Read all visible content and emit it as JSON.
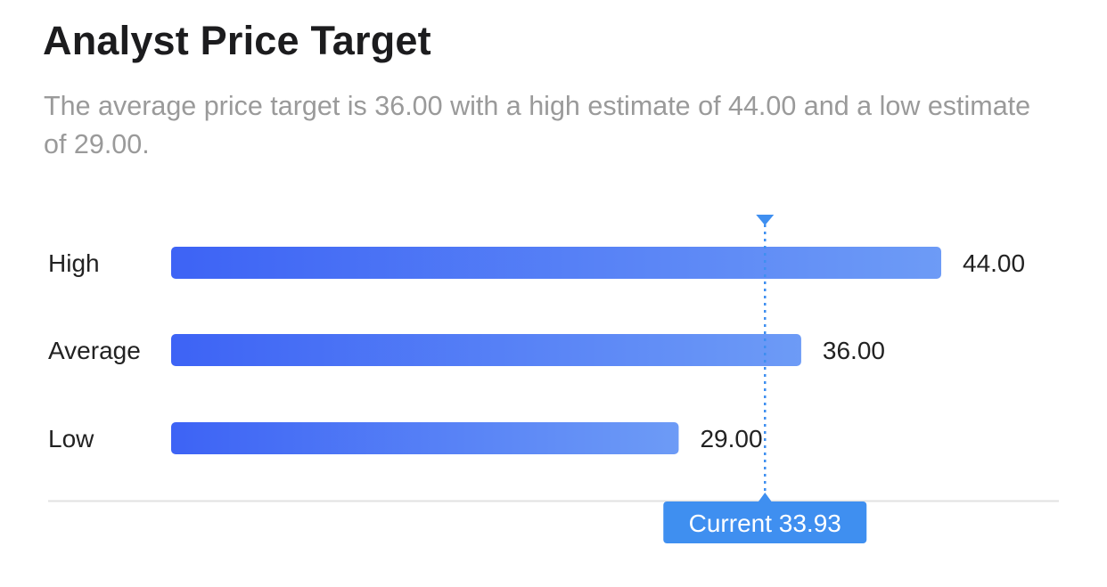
{
  "header": {
    "title": "Analyst Price Target",
    "subtitle": "The average price target is 36.00 with a high estimate of 44.00 and a low estimate of 29.00."
  },
  "chart_data": {
    "type": "bar",
    "orientation": "horizontal",
    "categories": [
      "High",
      "Average",
      "Low"
    ],
    "values": [
      44.0,
      36.0,
      29.0
    ],
    "value_labels": [
      "44.00",
      "36.00",
      "29.00"
    ],
    "current": {
      "value": 33.93,
      "label": "Current 33.93"
    },
    "xlim": [
      0,
      44.0
    ],
    "grid": false,
    "legend": "none",
    "colors": {
      "bar_start": "#3d63f5",
      "bar_end": "#6d9bf6",
      "marker": "#3f8ff0",
      "baseline": "#e2e2e2"
    }
  }
}
